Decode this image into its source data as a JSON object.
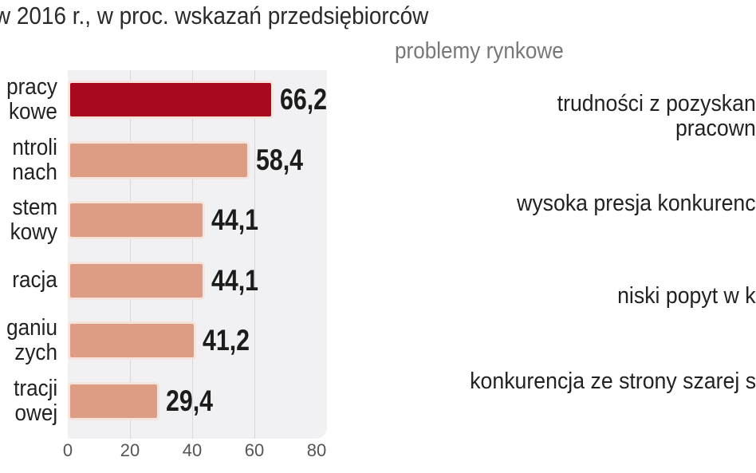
{
  "title": "w 2016 r., w proc. wskazań przedsiębiorców",
  "subtitle": "problemy rynkowe",
  "colors": {
    "highlight": "#a8091f",
    "bar": "#dd9c84",
    "plot_bg": "#f1f1f3"
  },
  "chart_data": {
    "type": "bar",
    "orientation": "horizontal",
    "categories": [
      [
        "pracy",
        "kowe"
      ],
      [
        "ntroli",
        "nach"
      ],
      [
        "stem",
        "kowy"
      ],
      [
        "racja"
      ],
      [
        "ganiu",
        "zych"
      ],
      [
        "tracji",
        "owej"
      ]
    ],
    "values": [
      66.2,
      58.4,
      44.1,
      44.1,
      41.2,
      29.4
    ],
    "value_labels": [
      "66,2",
      "58,4",
      "44,1",
      "44,1",
      "41,2",
      "29,4"
    ],
    "highlighted_index": 0,
    "xlim": [
      0,
      80
    ],
    "xticks": [
      "0",
      "20",
      "40",
      "60",
      "80"
    ],
    "grid": true
  },
  "right_panel": {
    "labels": [
      [
        "trudności z pozyskan",
        "pracown"
      ],
      [
        "wysoka presja konkurenc"
      ],
      [
        "niski popyt w k"
      ],
      [
        "konkurencja ze strony szarej s"
      ]
    ]
  }
}
